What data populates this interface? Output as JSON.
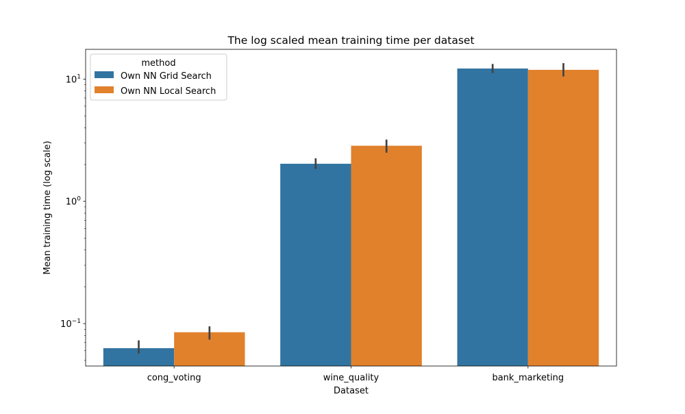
{
  "chart_data": {
    "type": "bar",
    "title": "The log scaled mean training time per dataset",
    "xlabel": "Dataset",
    "ylabel": "Mean training time (log scale)",
    "yscale": "log",
    "ylim": [
      0.045,
      17.5
    ],
    "yticks": [
      {
        "value": 0.1,
        "base": "10",
        "exp": "−1"
      },
      {
        "value": 1,
        "base": "10",
        "exp": "0"
      },
      {
        "value": 10,
        "base": "10",
        "exp": "1"
      }
    ],
    "categories": [
      "cong_voting",
      "wine_quality",
      "bank_marketing"
    ],
    "series": [
      {
        "name": "Own NN Grid Search",
        "color": "#3274a1",
        "values": [
          0.063,
          2.03,
          12.2
        ],
        "err_low": [
          0.057,
          1.84,
          11.2
        ],
        "err_high": [
          0.073,
          2.25,
          13.3
        ]
      },
      {
        "name": "Own NN Local Search",
        "color": "#e1812c",
        "values": [
          0.085,
          2.85,
          11.9
        ],
        "err_low": [
          0.074,
          2.5,
          10.5
        ],
        "err_high": [
          0.095,
          3.2,
          13.5
        ]
      }
    ],
    "legend": {
      "title": "method",
      "position": "top-left"
    },
    "grid": false
  }
}
